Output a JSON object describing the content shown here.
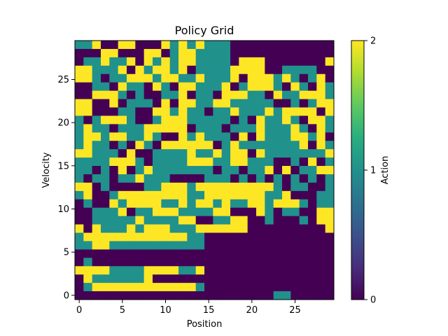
{
  "chart_data": {
    "type": "heatmap",
    "title": "Policy Grid",
    "xlabel": "Position",
    "ylabel": "Velocity",
    "colorbar_label": "Action",
    "colormap": "viridis",
    "colors": {
      "0": "#440154",
      "1": "#21918c",
      "2": "#fde725"
    },
    "xlim": [
      -0.5,
      29.5
    ],
    "ylim": [
      -0.5,
      29.5
    ],
    "xticks": [
      "0",
      "5",
      "10",
      "15",
      "20",
      "25"
    ],
    "yticks": [
      "0",
      "5",
      "10",
      "15",
      "20",
      "25"
    ],
    "colorbar_ticks": [
      "0",
      "1",
      "2"
    ],
    "origin": "lower",
    "grid_rows_top_to_bottom": [
      "112002200021212111000000000000",
      "000220002201221111000000000000",
      "011211202121221111022200000002",
      "221112021221201111222200111100",
      "221011222122112111202221210120",
      "001102110210221112012221021021",
      "002221010011201102221102112221",
      "220020111020221122111110010122",
      "220001100221211011211121222202",
      "101222100122211111010211210221",
      "121101112222201110111211121021",
      "122122112100212111020211122120",
      "121101021022222201211111112021",
      "221110200111121121220211111112",
      "111122210111122211221110010201",
      "110102012111111101101120201122",
      "101101121110000111010101010101",
      "220100001122212222222221011001",
      "120012222222211222222211200011",
      "010021222211212212112212221011",
      "001112011222111122000210110022",
      "001111121111220011220010001022",
      "202111212221112222220000000002",
      "122222222222211000000000000000",
      "112211111111111000000000000000",
      "000000000000000000000000000000",
      "010000000000000000000000000000",
      "222211112222112000000000000000",
      "021111112000000000000000000000",
      "012222222222221000000000000000",
      "000000000000000000000001100000"
    ]
  }
}
